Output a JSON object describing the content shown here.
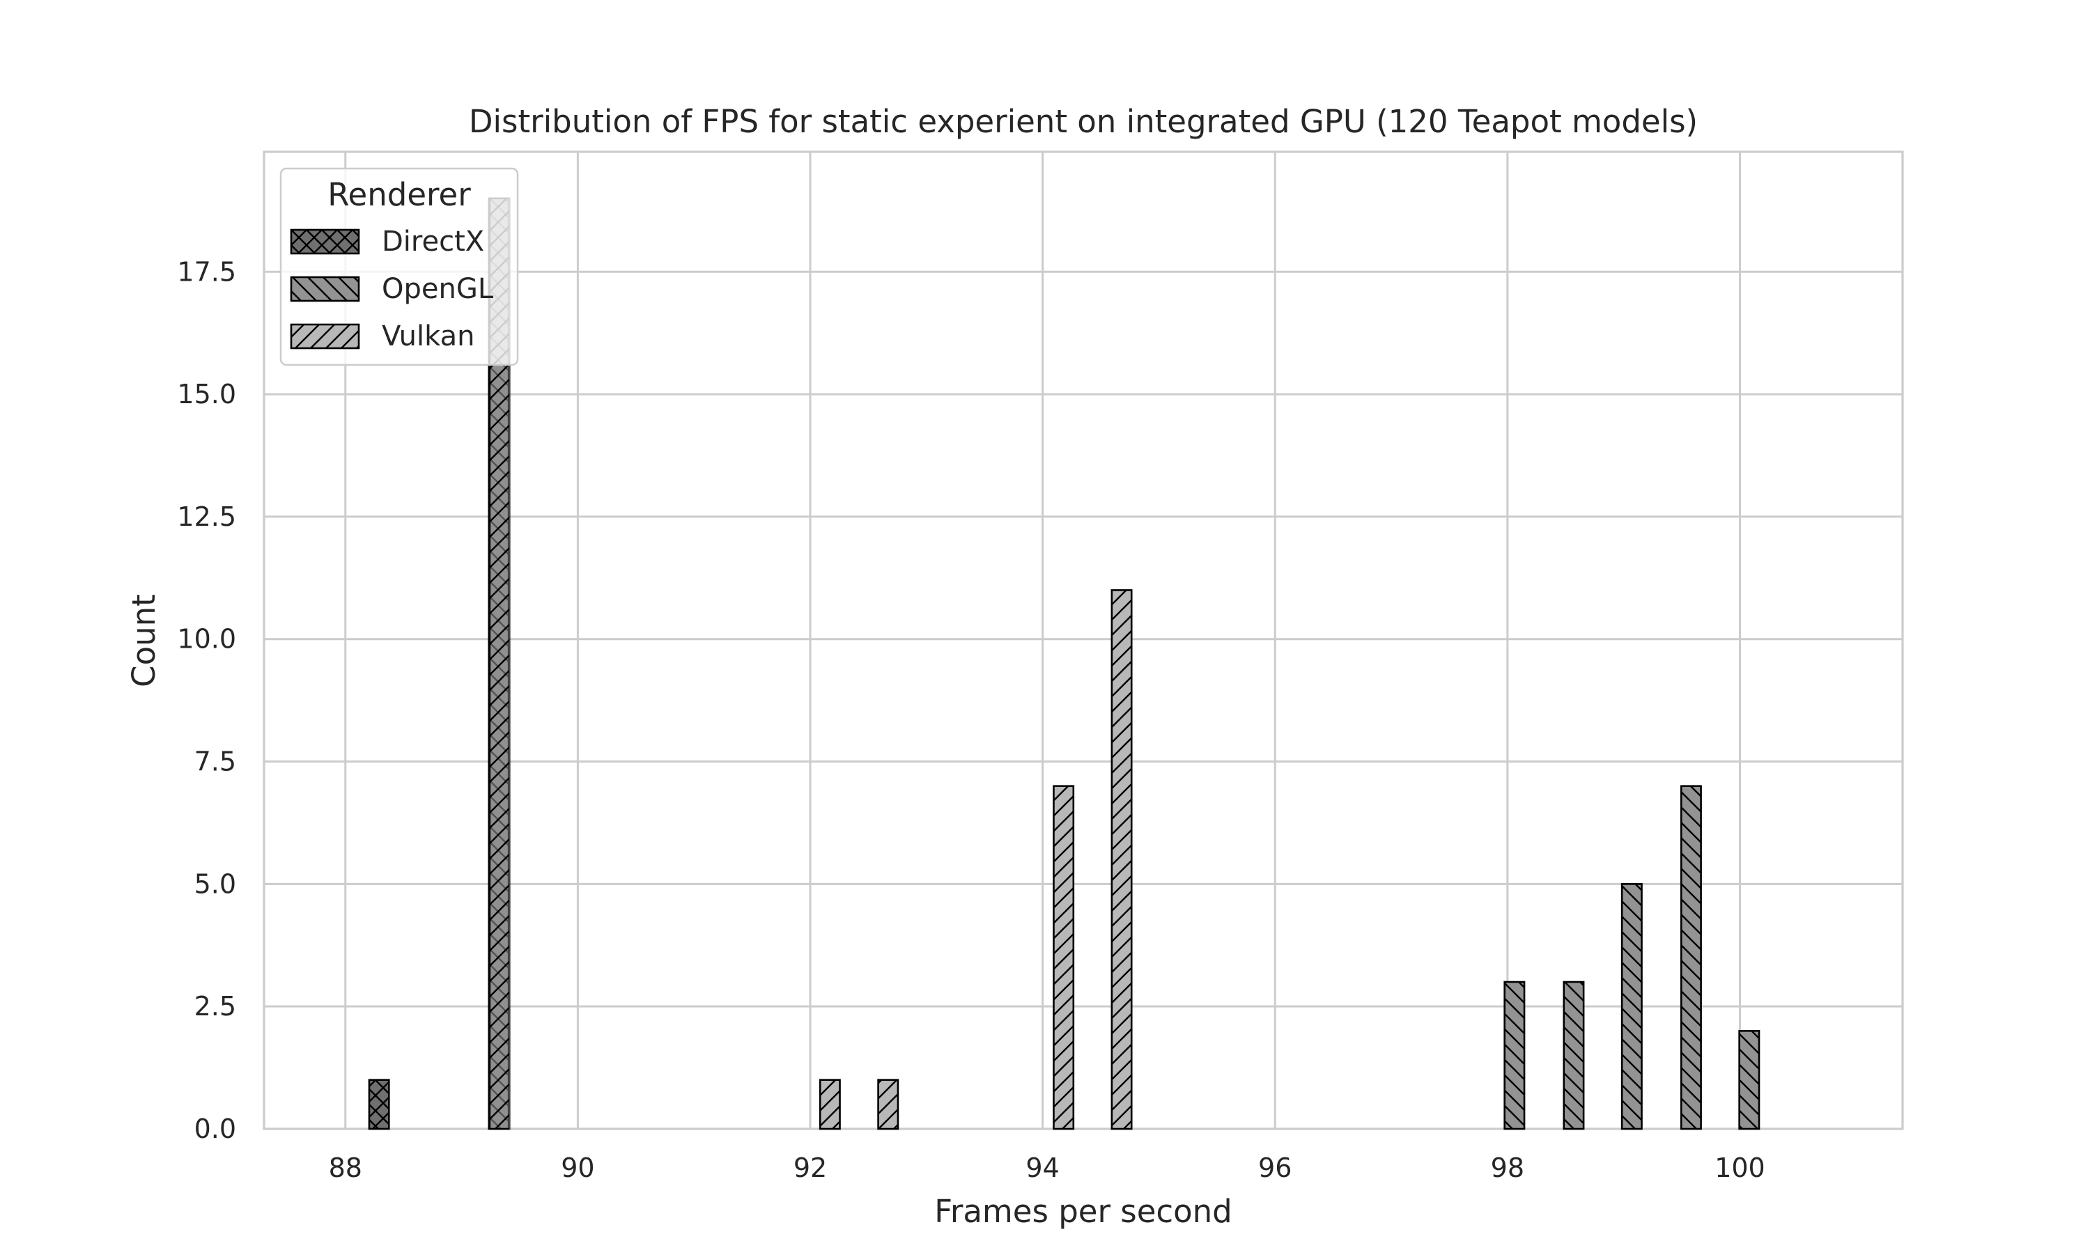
{
  "chart_data": {
    "type": "bar",
    "title": "Distribution of FPS for static experient on integrated GPU (120 Teapot models)",
    "xlabel": "Frames per second",
    "ylabel": "Count",
    "xlim": [
      87.3,
      101.4
    ],
    "ylim": [
      0,
      19.95
    ],
    "xticks": [
      88,
      90,
      92,
      94,
      96,
      98,
      100
    ],
    "yticks": [
      0.0,
      2.5,
      5.0,
      7.5,
      10.0,
      12.5,
      15.0,
      17.5
    ],
    "xtick_labels": [
      "88",
      "90",
      "92",
      "94",
      "96",
      "98",
      "100"
    ],
    "ytick_labels": [
      "0.0",
      "2.5",
      "5.0",
      "7.5",
      "10.0",
      "12.5",
      "15.0",
      "17.5"
    ],
    "grid": true,
    "legend": {
      "title": "Renderer",
      "position": "top-left",
      "entries": [
        "DirectX",
        "OpenGL",
        "Vulkan"
      ]
    },
    "bin_width": 0.17,
    "series": [
      {
        "name": "DirectX",
        "color": "#707070",
        "hatch": "cross",
        "bins": [
          {
            "x": 88.29,
            "count": 1
          },
          {
            "x": 89.32,
            "count": 19
          }
        ]
      },
      {
        "name": "OpenGL",
        "color": "#939393",
        "hatch": "backslash",
        "bins": [
          {
            "x": 98.06,
            "count": 3
          },
          {
            "x": 98.57,
            "count": 3
          },
          {
            "x": 99.07,
            "count": 5
          },
          {
            "x": 99.58,
            "count": 7
          },
          {
            "x": 100.08,
            "count": 2
          }
        ]
      },
      {
        "name": "Vulkan",
        "color": "#b8b8b8",
        "hatch": "slash",
        "bins": [
          {
            "x": 89.33,
            "count": 19
          },
          {
            "x": 92.17,
            "count": 1
          },
          {
            "x": 92.67,
            "count": 1
          },
          {
            "x": 94.18,
            "count": 7
          },
          {
            "x": 94.68,
            "count": 11
          }
        ]
      }
    ]
  }
}
